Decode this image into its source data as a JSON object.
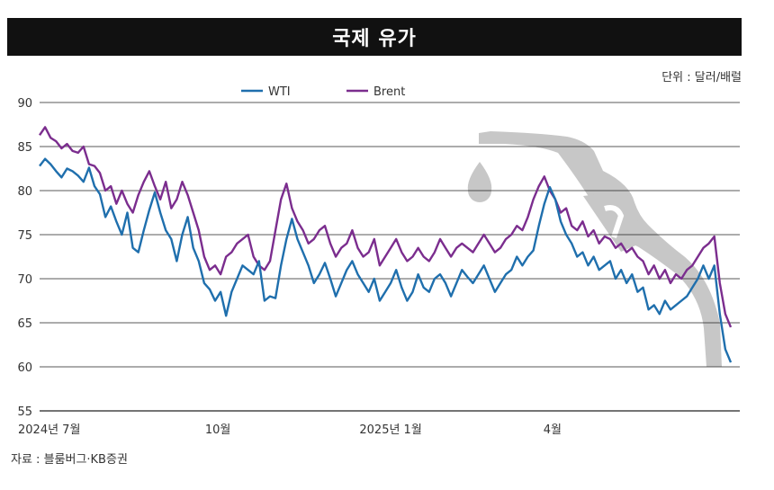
{
  "title": "국제 유가",
  "unit_label": "단위 : 달러/배럴",
  "source_label": "자료 : 블룸버그·KB증권",
  "colors": {
    "wti": "#1f6fad",
    "brent": "#7b2d8e",
    "grid": "#222222",
    "pump": "#c7c7c7"
  },
  "decoration": {
    "icon": "fuel-nozzle-icon"
  },
  "chart_data": {
    "type": "line",
    "title": "국제 유가",
    "ylim": [
      55,
      90
    ],
    "yticks": [
      55,
      60,
      65,
      70,
      75,
      80,
      85,
      90
    ],
    "xlim": [
      0,
      252
    ],
    "xticks": [
      {
        "x": 0,
        "label": "2024년 7월"
      },
      {
        "x": 65,
        "label": "10월"
      },
      {
        "x": 128,
        "label": "2025년 1월"
      },
      {
        "x": 187,
        "label": "4월"
      }
    ],
    "legend": "top-left",
    "grid": true,
    "series": [
      {
        "name": "WTI",
        "key": "wti",
        "points": [
          [
            0,
            82.8
          ],
          [
            2,
            83.6
          ],
          [
            4,
            83.0
          ],
          [
            6,
            82.2
          ],
          [
            8,
            81.5
          ],
          [
            10,
            82.5
          ],
          [
            12,
            82.2
          ],
          [
            14,
            81.7
          ],
          [
            16,
            81.0
          ],
          [
            18,
            82.6
          ],
          [
            20,
            80.5
          ],
          [
            22,
            79.6
          ],
          [
            24,
            77.0
          ],
          [
            26,
            78.2
          ],
          [
            28,
            76.5
          ],
          [
            30,
            75.0
          ],
          [
            32,
            77.5
          ],
          [
            34,
            73.5
          ],
          [
            36,
            73.0
          ],
          [
            38,
            75.5
          ],
          [
            40,
            77.8
          ],
          [
            42,
            79.8
          ],
          [
            44,
            77.5
          ],
          [
            46,
            75.5
          ],
          [
            48,
            74.5
          ],
          [
            50,
            72.0
          ],
          [
            52,
            75.0
          ],
          [
            54,
            77.0
          ],
          [
            56,
            73.5
          ],
          [
            58,
            72.0
          ],
          [
            60,
            69.5
          ],
          [
            62,
            68.8
          ],
          [
            64,
            67.5
          ],
          [
            66,
            68.5
          ],
          [
            68,
            65.8
          ],
          [
            70,
            68.5
          ],
          [
            72,
            70.0
          ],
          [
            74,
            71.5
          ],
          [
            76,
            71.0
          ],
          [
            78,
            70.5
          ],
          [
            80,
            72.0
          ],
          [
            82,
            67.5
          ],
          [
            84,
            68.0
          ],
          [
            86,
            67.8
          ],
          [
            88,
            71.5
          ],
          [
            90,
            74.5
          ],
          [
            92,
            76.8
          ],
          [
            94,
            74.5
          ],
          [
            96,
            73.0
          ],
          [
            98,
            71.5
          ],
          [
            100,
            69.5
          ],
          [
            102,
            70.5
          ],
          [
            104,
            71.8
          ],
          [
            106,
            70.0
          ],
          [
            108,
            68.0
          ],
          [
            110,
            69.5
          ],
          [
            112,
            71.0
          ],
          [
            114,
            72.0
          ],
          [
            116,
            70.5
          ],
          [
            118,
            69.5
          ],
          [
            120,
            68.5
          ],
          [
            122,
            70.0
          ],
          [
            124,
            67.5
          ],
          [
            126,
            68.5
          ],
          [
            128,
            69.5
          ],
          [
            130,
            71.0
          ],
          [
            132,
            69.0
          ],
          [
            134,
            67.5
          ],
          [
            136,
            68.5
          ],
          [
            138,
            70.5
          ],
          [
            140,
            69.0
          ],
          [
            142,
            68.5
          ],
          [
            144,
            70.0
          ],
          [
            146,
            70.5
          ],
          [
            148,
            69.5
          ],
          [
            150,
            68.0
          ],
          [
            152,
            69.5
          ],
          [
            154,
            71.0
          ],
          [
            156,
            70.2
          ],
          [
            158,
            69.5
          ],
          [
            160,
            70.5
          ],
          [
            162,
            71.5
          ],
          [
            164,
            70.0
          ],
          [
            166,
            68.5
          ],
          [
            168,
            69.5
          ],
          [
            170,
            70.5
          ],
          [
            172,
            71.0
          ],
          [
            174,
            72.5
          ],
          [
            176,
            71.5
          ],
          [
            178,
            72.5
          ],
          [
            180,
            73.2
          ],
          [
            182,
            76.0
          ],
          [
            184,
            78.5
          ],
          [
            186,
            80.4
          ],
          [
            188,
            79.0
          ],
          [
            190,
            76.5
          ],
          [
            192,
            75.0
          ],
          [
            194,
            74.0
          ],
          [
            196,
            72.5
          ],
          [
            198,
            73.0
          ],
          [
            200,
            71.5
          ],
          [
            202,
            72.5
          ],
          [
            204,
            71.0
          ],
          [
            206,
            71.5
          ],
          [
            208,
            72.0
          ],
          [
            210,
            70.0
          ],
          [
            212,
            71.0
          ],
          [
            214,
            69.5
          ],
          [
            216,
            70.5
          ],
          [
            218,
            68.5
          ],
          [
            220,
            69.0
          ],
          [
            222,
            66.5
          ],
          [
            224,
            67.0
          ],
          [
            226,
            66.0
          ],
          [
            228,
            67.5
          ],
          [
            230,
            66.5
          ],
          [
            232,
            67.0
          ],
          [
            234,
            67.5
          ],
          [
            236,
            68.0
          ],
          [
            238,
            69.0
          ],
          [
            240,
            70.0
          ],
          [
            242,
            71.5
          ],
          [
            244,
            70.0
          ],
          [
            246,
            71.5
          ],
          [
            248,
            66.0
          ],
          [
            250,
            62.0
          ],
          [
            252,
            60.5
          ]
        ]
      },
      {
        "name": "Brent",
        "key": "brent",
        "points": [
          [
            0,
            86.3
          ],
          [
            2,
            87.2
          ],
          [
            4,
            86.0
          ],
          [
            6,
            85.6
          ],
          [
            8,
            84.8
          ],
          [
            10,
            85.3
          ],
          [
            12,
            84.5
          ],
          [
            14,
            84.3
          ],
          [
            16,
            85.0
          ],
          [
            18,
            83.0
          ],
          [
            20,
            82.8
          ],
          [
            22,
            82.0
          ],
          [
            24,
            80.0
          ],
          [
            26,
            80.5
          ],
          [
            28,
            78.5
          ],
          [
            30,
            80.0
          ],
          [
            32,
            78.5
          ],
          [
            34,
            77.5
          ],
          [
            36,
            79.5
          ],
          [
            38,
            81.0
          ],
          [
            40,
            82.2
          ],
          [
            42,
            80.5
          ],
          [
            44,
            79.0
          ],
          [
            46,
            81.0
          ],
          [
            48,
            78.0
          ],
          [
            50,
            79.0
          ],
          [
            52,
            81.0
          ],
          [
            54,
            79.5
          ],
          [
            56,
            77.5
          ],
          [
            58,
            75.5
          ],
          [
            60,
            72.5
          ],
          [
            62,
            71.0
          ],
          [
            64,
            71.5
          ],
          [
            66,
            70.5
          ],
          [
            68,
            72.5
          ],
          [
            70,
            73.0
          ],
          [
            72,
            74.0
          ],
          [
            74,
            74.5
          ],
          [
            76,
            75.0
          ],
          [
            78,
            72.5
          ],
          [
            80,
            71.5
          ],
          [
            82,
            71.0
          ],
          [
            84,
            72.0
          ],
          [
            86,
            75.5
          ],
          [
            88,
            79.0
          ],
          [
            90,
            80.8
          ],
          [
            92,
            78.0
          ],
          [
            94,
            76.5
          ],
          [
            96,
            75.5
          ],
          [
            98,
            74.0
          ],
          [
            100,
            74.5
          ],
          [
            102,
            75.5
          ],
          [
            104,
            76.0
          ],
          [
            106,
            74.0
          ],
          [
            108,
            72.5
          ],
          [
            110,
            73.5
          ],
          [
            112,
            74.0
          ],
          [
            114,
            75.5
          ],
          [
            116,
            73.5
          ],
          [
            118,
            72.5
          ],
          [
            120,
            73.0
          ],
          [
            122,
            74.5
          ],
          [
            124,
            71.5
          ],
          [
            126,
            72.5
          ],
          [
            128,
            73.5
          ],
          [
            130,
            74.5
          ],
          [
            132,
            73.0
          ],
          [
            134,
            72.0
          ],
          [
            136,
            72.5
          ],
          [
            138,
            73.5
          ],
          [
            140,
            72.5
          ],
          [
            142,
            72.0
          ],
          [
            144,
            73.0
          ],
          [
            146,
            74.5
          ],
          [
            148,
            73.5
          ],
          [
            150,
            72.5
          ],
          [
            152,
            73.5
          ],
          [
            154,
            74.0
          ],
          [
            156,
            73.5
          ],
          [
            158,
            73.0
          ],
          [
            160,
            74.0
          ],
          [
            162,
            75.0
          ],
          [
            164,
            74.0
          ],
          [
            166,
            73.0
          ],
          [
            168,
            73.5
          ],
          [
            170,
            74.5
          ],
          [
            172,
            75.0
          ],
          [
            174,
            76.0
          ],
          [
            176,
            75.5
          ],
          [
            178,
            77.0
          ],
          [
            180,
            79.0
          ],
          [
            182,
            80.5
          ],
          [
            184,
            81.6
          ],
          [
            186,
            80.0
          ],
          [
            188,
            79.0
          ],
          [
            190,
            77.5
          ],
          [
            192,
            78.0
          ],
          [
            194,
            76.0
          ],
          [
            196,
            75.5
          ],
          [
            198,
            76.5
          ],
          [
            200,
            74.8
          ],
          [
            202,
            75.5
          ],
          [
            204,
            74.0
          ],
          [
            206,
            74.8
          ],
          [
            208,
            74.5
          ],
          [
            210,
            73.5
          ],
          [
            212,
            74.0
          ],
          [
            214,
            73.0
          ],
          [
            216,
            73.5
          ],
          [
            218,
            72.5
          ],
          [
            220,
            72.0
          ],
          [
            222,
            70.5
          ],
          [
            224,
            71.5
          ],
          [
            226,
            70.0
          ],
          [
            228,
            71.0
          ],
          [
            230,
            69.5
          ],
          [
            232,
            70.5
          ],
          [
            234,
            70.0
          ],
          [
            236,
            71.0
          ],
          [
            238,
            71.5
          ],
          [
            240,
            72.5
          ],
          [
            242,
            73.5
          ],
          [
            244,
            74.0
          ],
          [
            246,
            74.8
          ],
          [
            248,
            69.5
          ],
          [
            250,
            66.0
          ],
          [
            252,
            64.5
          ]
        ]
      }
    ]
  }
}
